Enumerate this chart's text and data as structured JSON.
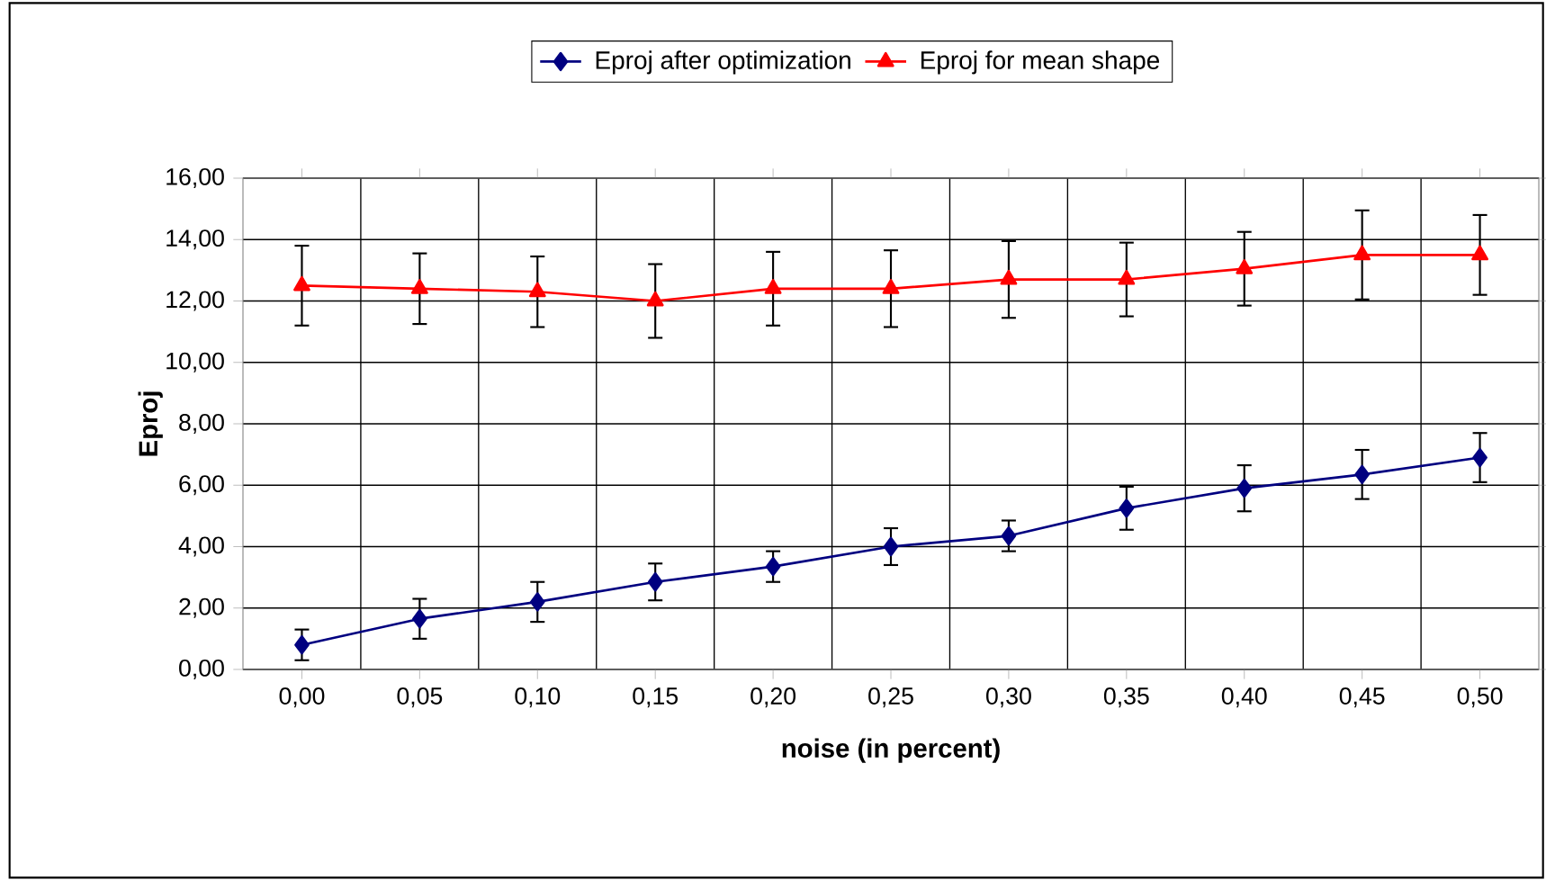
{
  "chart_data": {
    "type": "line",
    "xlabel": "noise (in percent)",
    "ylabel": "Eproj",
    "categories": [
      "0,00",
      "0,05",
      "0,10",
      "0,15",
      "0,20",
      "0,25",
      "0,30",
      "0,35",
      "0,40",
      "0,45",
      "0,50"
    ],
    "ylim": [
      0,
      16
    ],
    "yticks": [
      {
        "value": 0,
        "label": "0,00"
      },
      {
        "value": 2,
        "label": "2,00"
      },
      {
        "value": 4,
        "label": "4,00"
      },
      {
        "value": 6,
        "label": "6,00"
      },
      {
        "value": 8,
        "label": "8,00"
      },
      {
        "value": 10,
        "label": "10,00"
      },
      {
        "value": 12,
        "label": "12,00"
      },
      {
        "value": 14,
        "label": "14,00"
      },
      {
        "value": 16,
        "label": "16,00"
      }
    ],
    "grid": true,
    "legend": "top",
    "series": [
      {
        "name": "Eproj after optimization",
        "color": "#000080",
        "marker": "diamond",
        "values": [
          0.8,
          1.65,
          2.2,
          2.85,
          3.35,
          4.0,
          4.35,
          5.25,
          5.9,
          6.35,
          6.9
        ],
        "errors": [
          0.5,
          0.65,
          0.65,
          0.6,
          0.5,
          0.6,
          0.5,
          0.7,
          0.75,
          0.8,
          0.8
        ]
      },
      {
        "name": "Eproj for mean shape",
        "color": "#ff0000",
        "marker": "triangle",
        "values": [
          12.5,
          12.4,
          12.3,
          12.0,
          12.4,
          12.4,
          12.7,
          12.7,
          13.05,
          13.5,
          13.5
        ],
        "errors": [
          1.3,
          1.15,
          1.15,
          1.2,
          1.2,
          1.25,
          1.25,
          1.2,
          1.2,
          1.45,
          1.3
        ]
      }
    ]
  }
}
